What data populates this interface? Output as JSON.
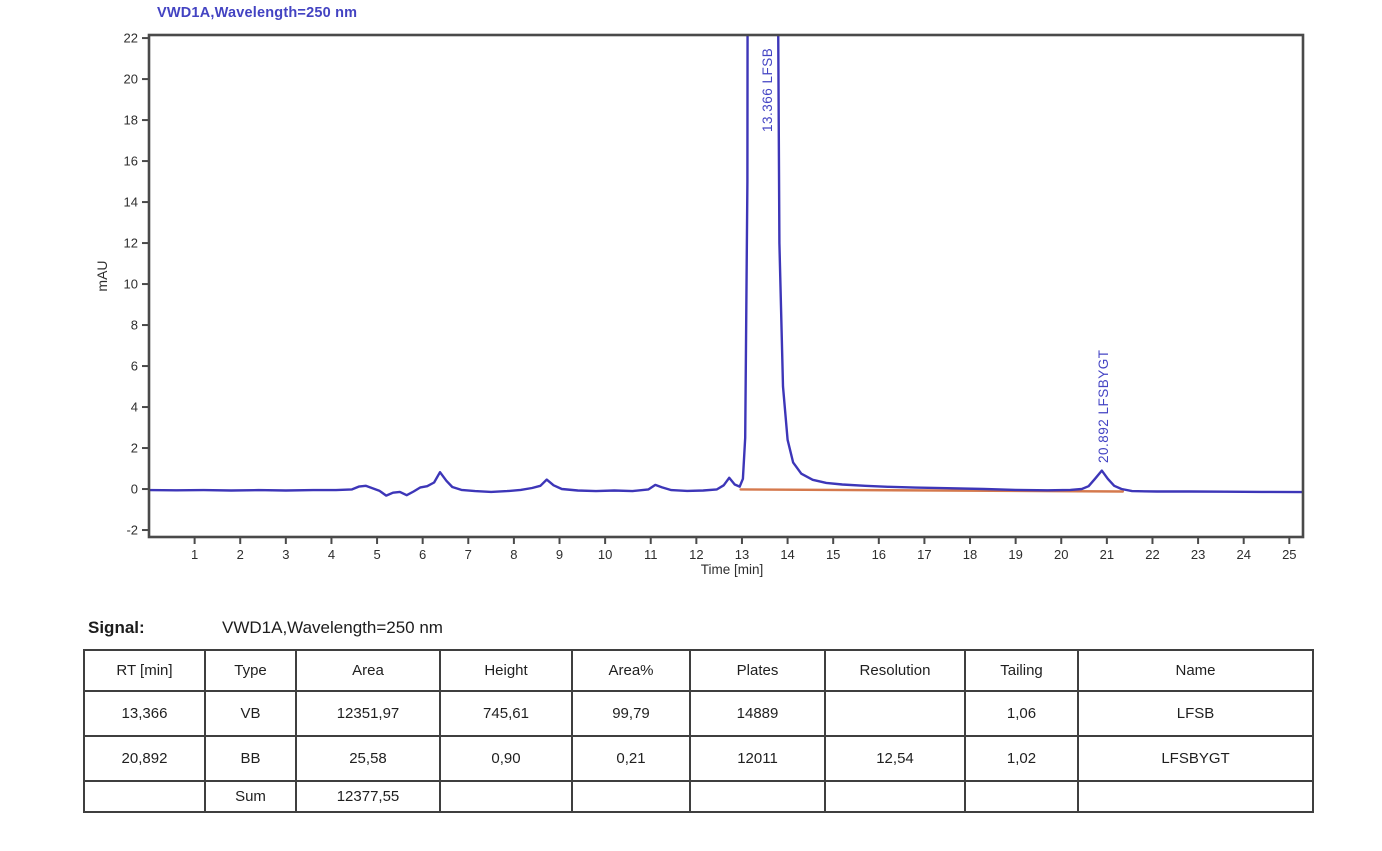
{
  "chart": {
    "title": "VWD1A,Wavelength=250 nm",
    "title_color": "#4343c2",
    "trace_color": "#3d36b8",
    "baseline_color": "#d5794d",
    "frame_color": "#4a4a4a",
    "tick_text_color": "#2e2e2e",
    "peak_label_color": "#4444c4"
  },
  "chart_data": {
    "type": "line",
    "title": "VWD1A,Wavelength=250 nm",
    "xlabel": "Time [min]",
    "ylabel": "mAU",
    "xlim": [
      0,
      25.3
    ],
    "ylim": [
      -2.34,
      22.15
    ],
    "x_ticks": [
      1,
      2,
      3,
      4,
      5,
      6,
      7,
      8,
      9,
      10,
      11,
      12,
      13,
      14,
      15,
      16,
      17,
      18,
      19,
      20,
      21,
      22,
      23,
      24,
      25
    ],
    "y_ticks": [
      -2,
      0,
      2,
      4,
      6,
      8,
      10,
      12,
      14,
      16,
      18,
      20,
      22
    ],
    "grid": false,
    "legend": "none",
    "series": [
      {
        "name": "VWD1A,Wavelength=250 nm",
        "points": [
          [
            0,
            -0.05
          ],
          [
            0.6,
            -0.06
          ],
          [
            1.2,
            -0.05
          ],
          [
            1.8,
            -0.07
          ],
          [
            2.4,
            -0.05
          ],
          [
            3.0,
            -0.07
          ],
          [
            3.6,
            -0.05
          ],
          [
            4.1,
            -0.05
          ],
          [
            4.45,
            -0.02
          ],
          [
            4.6,
            0.12
          ],
          [
            4.75,
            0.16
          ],
          [
            4.9,
            0.04
          ],
          [
            5.05,
            -0.08
          ],
          [
            5.2,
            -0.32
          ],
          [
            5.35,
            -0.18
          ],
          [
            5.5,
            -0.14
          ],
          [
            5.65,
            -0.3
          ],
          [
            5.8,
            -0.12
          ],
          [
            5.95,
            0.08
          ],
          [
            6.1,
            0.14
          ],
          [
            6.25,
            0.32
          ],
          [
            6.38,
            0.82
          ],
          [
            6.52,
            0.4
          ],
          [
            6.65,
            0.1
          ],
          [
            6.85,
            -0.04
          ],
          [
            7.15,
            -0.1
          ],
          [
            7.5,
            -0.14
          ],
          [
            7.85,
            -0.1
          ],
          [
            8.15,
            -0.04
          ],
          [
            8.4,
            0.05
          ],
          [
            8.58,
            0.16
          ],
          [
            8.72,
            0.46
          ],
          [
            8.87,
            0.18
          ],
          [
            9.05,
            0.0
          ],
          [
            9.4,
            -0.07
          ],
          [
            9.8,
            -0.1
          ],
          [
            10.2,
            -0.07
          ],
          [
            10.6,
            -0.1
          ],
          [
            10.95,
            -0.02
          ],
          [
            11.1,
            0.2
          ],
          [
            11.25,
            0.08
          ],
          [
            11.45,
            -0.05
          ],
          [
            11.8,
            -0.09
          ],
          [
            12.15,
            -0.07
          ],
          [
            12.45,
            -0.02
          ],
          [
            12.6,
            0.18
          ],
          [
            12.72,
            0.55
          ],
          [
            12.84,
            0.22
          ],
          [
            12.95,
            0.12
          ],
          [
            13.02,
            0.5
          ],
          [
            13.07,
            2.5
          ],
          [
            13.12,
            15
          ],
          [
            13.17,
            120
          ],
          [
            13.25,
            600
          ],
          [
            13.37,
            745.61
          ],
          [
            13.5,
            700
          ],
          [
            13.6,
            420
          ],
          [
            13.68,
            150
          ],
          [
            13.75,
            40
          ],
          [
            13.82,
            12
          ],
          [
            13.9,
            5
          ],
          [
            14.0,
            2.4
          ],
          [
            14.12,
            1.3
          ],
          [
            14.3,
            0.75
          ],
          [
            14.55,
            0.45
          ],
          [
            14.85,
            0.3
          ],
          [
            15.2,
            0.22
          ],
          [
            15.7,
            0.16
          ],
          [
            16.2,
            0.11
          ],
          [
            16.8,
            0.07
          ],
          [
            17.5,
            0.04
          ],
          [
            18.3,
            0.0
          ],
          [
            19.0,
            -0.04
          ],
          [
            19.7,
            -0.06
          ],
          [
            20.2,
            -0.04
          ],
          [
            20.45,
            0.0
          ],
          [
            20.6,
            0.14
          ],
          [
            20.74,
            0.5
          ],
          [
            20.89,
            0.9
          ],
          [
            21.02,
            0.5
          ],
          [
            21.16,
            0.16
          ],
          [
            21.32,
            0.0
          ],
          [
            21.55,
            -0.1
          ],
          [
            22.1,
            -0.12
          ],
          [
            22.8,
            -0.12
          ],
          [
            23.6,
            -0.13
          ],
          [
            24.4,
            -0.14
          ],
          [
            25.3,
            -0.15
          ]
        ]
      }
    ],
    "integration_baseline": {
      "from": [
        12.97,
        -0.02
      ],
      "to": [
        21.35,
        -0.12
      ]
    },
    "peaks": [
      {
        "rt": 13.366,
        "label": "13.366 LFSB"
      },
      {
        "rt": 20.892,
        "label": "20.892 LFSBYGT"
      }
    ]
  },
  "signal": {
    "label": "Signal:",
    "value": "VWD1A,Wavelength=250 nm"
  },
  "table": {
    "headers": [
      "RT [min]",
      "Type",
      "Area",
      "Height",
      "Area%",
      "Plates",
      "Resolution",
      "Tailing",
      "Name"
    ],
    "rows": [
      [
        "13,366",
        "VB",
        "12351,97",
        "745,61",
        "99,79",
        "14889",
        "",
        "1,06",
        "LFSB"
      ],
      [
        "20,892",
        "BB",
        "25,58",
        "0,90",
        "0,21",
        "12011",
        "12,54",
        "1,02",
        "LFSBYGT"
      ],
      [
        "",
        "Sum",
        "12377,55",
        "",
        "",
        "",
        "",
        "",
        ""
      ]
    ]
  }
}
